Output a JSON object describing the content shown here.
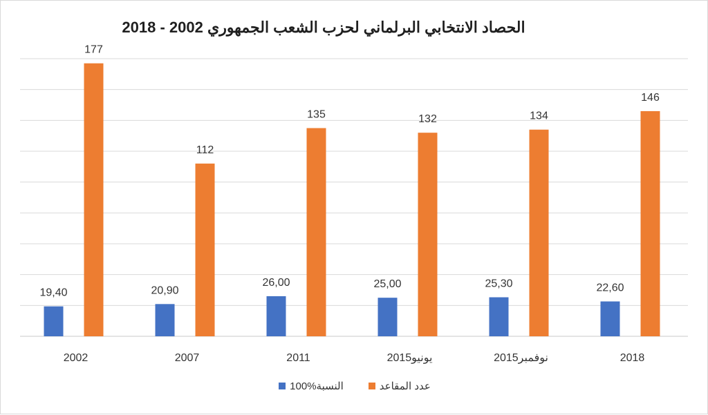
{
  "chart_data": {
    "type": "bar",
    "title": "الحصاد الانتخابي البرلماني لحزب الشعب الجمهوري 2002 - 2018",
    "categories": [
      "2002",
      "2007",
      "2011",
      "يونيو2015",
      "نوفمبر2015",
      "2018"
    ],
    "series": [
      {
        "name": "النسبة%100",
        "color": "#4472c4",
        "values": [
          19.4,
          20.9,
          26.0,
          25.0,
          25.3,
          22.6
        ],
        "labels": [
          "19,40",
          "20,90",
          "26,00",
          "25,00",
          "25,30",
          "22,60"
        ]
      },
      {
        "name": "عدد المقاعد",
        "color": "#ed7d31",
        "values": [
          177,
          112,
          135,
          132,
          134,
          146
        ],
        "labels": [
          "177",
          "112",
          "135",
          "132",
          "134",
          "146"
        ]
      }
    ],
    "ylim": [
      0,
      180
    ],
    "grid": true,
    "legend_position": "bottom"
  }
}
